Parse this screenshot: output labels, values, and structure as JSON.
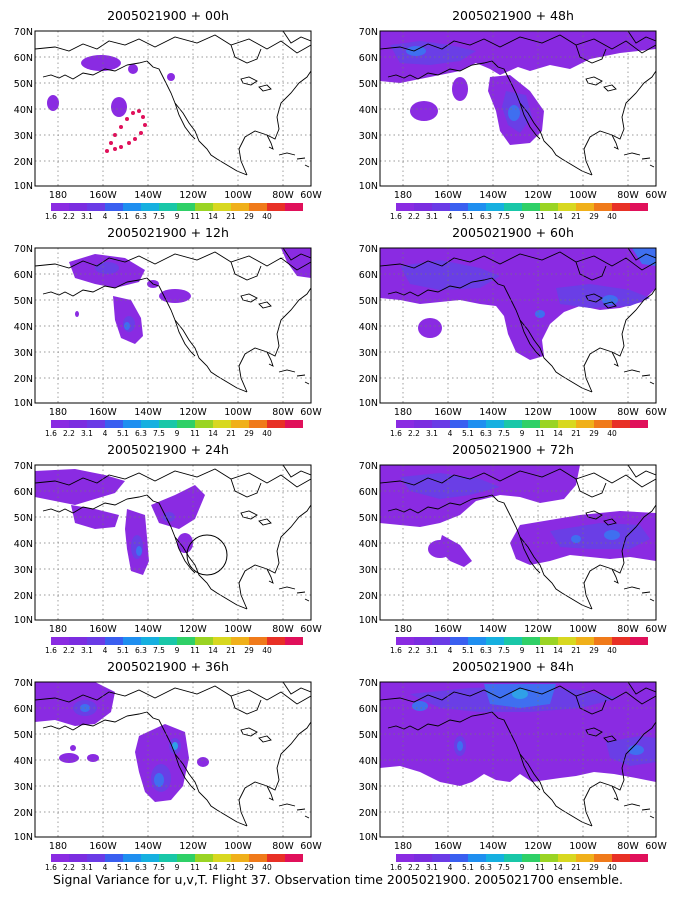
{
  "footer": "Signal Variance for u,v,T. Flight 37. Observation time 2005021900. 2005021700 ensemble.",
  "panels": [
    {
      "title": "2005021900 + 00h"
    },
    {
      "title": "2005021900 + 48h"
    },
    {
      "title": "2005021900 + 12h"
    },
    {
      "title": "2005021900 + 60h"
    },
    {
      "title": "2005021900 + 24h"
    },
    {
      "title": "2005021900 + 72h"
    },
    {
      "title": "2005021900 + 36h"
    },
    {
      "title": "2005021900 + 84h"
    }
  ],
  "lon_ticks": [
    "180",
    "160W",
    "140W",
    "120W",
    "100W",
    "80W",
    "60W"
  ],
  "lat_ticks": [
    "70N",
    "60N",
    "50N",
    "40N",
    "30N",
    "20N",
    "10N"
  ],
  "colorbar": {
    "labels": [
      "1.6",
      "2.2",
      "3.1",
      "4",
      "5.1",
      "6.3",
      "7.5",
      "9",
      "11",
      "14",
      "21",
      "29",
      "40"
    ],
    "colors": [
      "#8a2be2",
      "#7b2de0",
      "#6a3be6",
      "#3a5ff0",
      "#1f8ff0",
      "#16b0e0",
      "#19c7a8",
      "#2fd067",
      "#9ad424",
      "#d8d820",
      "#f0b01a",
      "#f07a1a",
      "#e83026",
      "#e0105a"
    ]
  },
  "fill_colors": {
    "level1": "#8a2be2",
    "level2": "#6a3ee6",
    "level3": "#3f6ff0",
    "level4": "#2fa0e8"
  },
  "observation_marker_color": "#e0105a"
}
